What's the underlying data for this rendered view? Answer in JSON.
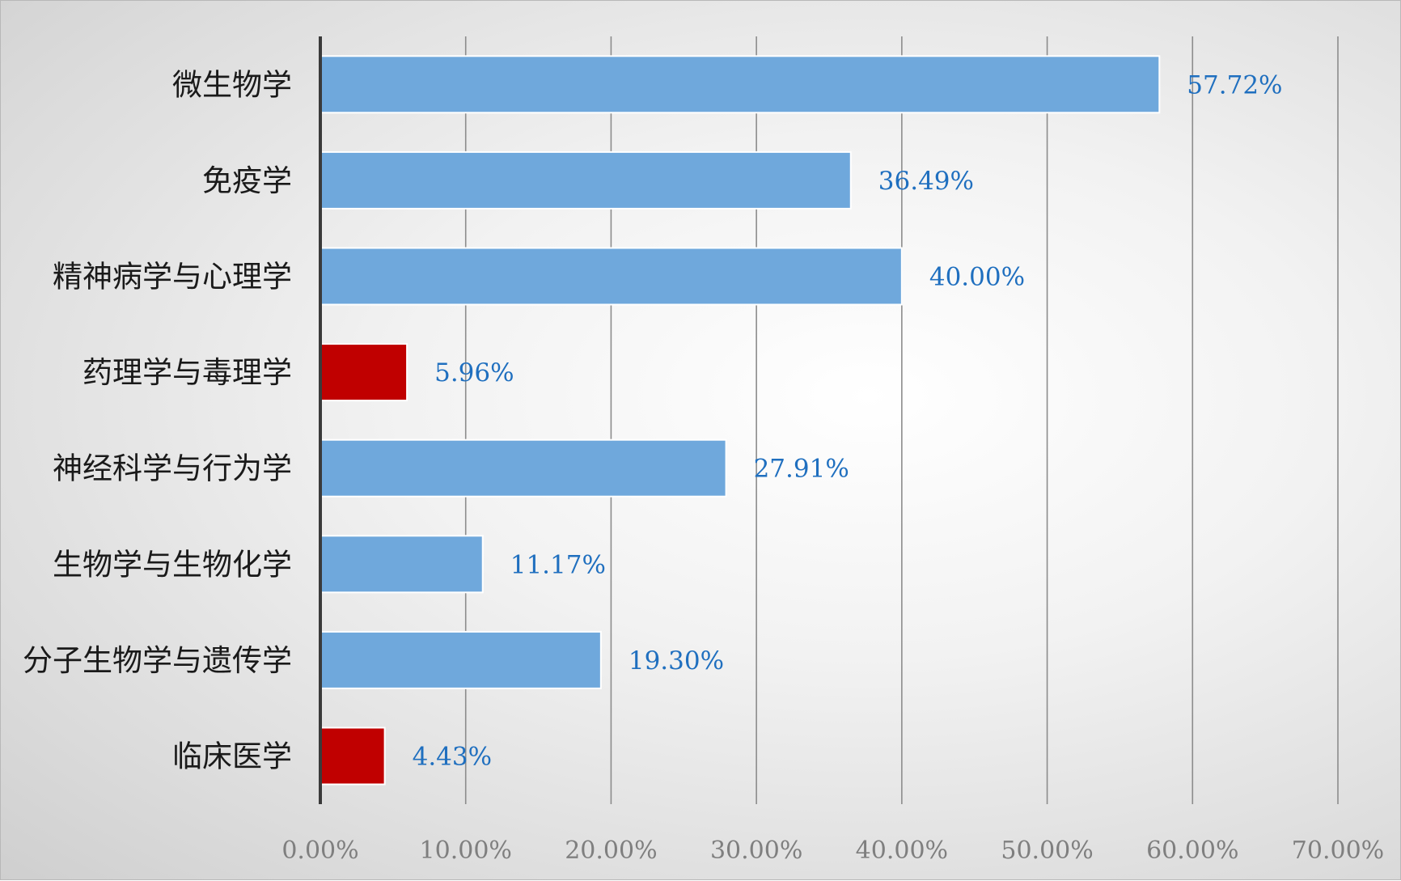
{
  "chart_data": {
    "type": "bar",
    "orientation": "horizontal",
    "categories": [
      "微生物学",
      "免疫学",
      "精神病学与心理学",
      "药理学与毒理学",
      "神经科学与行为学",
      "生物学与生物化学",
      "分子生物学与遗传学",
      "临床医学"
    ],
    "values": [
      57.72,
      36.49,
      40.0,
      5.96,
      27.91,
      11.17,
      19.3,
      4.43
    ],
    "value_labels": [
      "57.72%",
      "36.49%",
      "40.00%",
      "5.96%",
      "27.91%",
      "11.17%",
      "19.30%",
      "4.43%"
    ],
    "highlighted": [
      "药理学与毒理学",
      "临床医学"
    ],
    "x_ticks": [
      "0.00%",
      "10.00%",
      "20.00%",
      "30.00%",
      "40.00%",
      "50.00%",
      "60.00%",
      "70.00%"
    ],
    "xlim": [
      0,
      70
    ],
    "grid": "vertical",
    "legend": "none",
    "colors": {
      "bar": "#6fa8dc",
      "bar_highlight": "#c00000",
      "value_label": "#1f6fbf",
      "category_label": "#1a1a1a",
      "tick_label": "#7f7f7f",
      "gridline": "#8c8c8c",
      "axis": "#3a3a3a"
    }
  }
}
